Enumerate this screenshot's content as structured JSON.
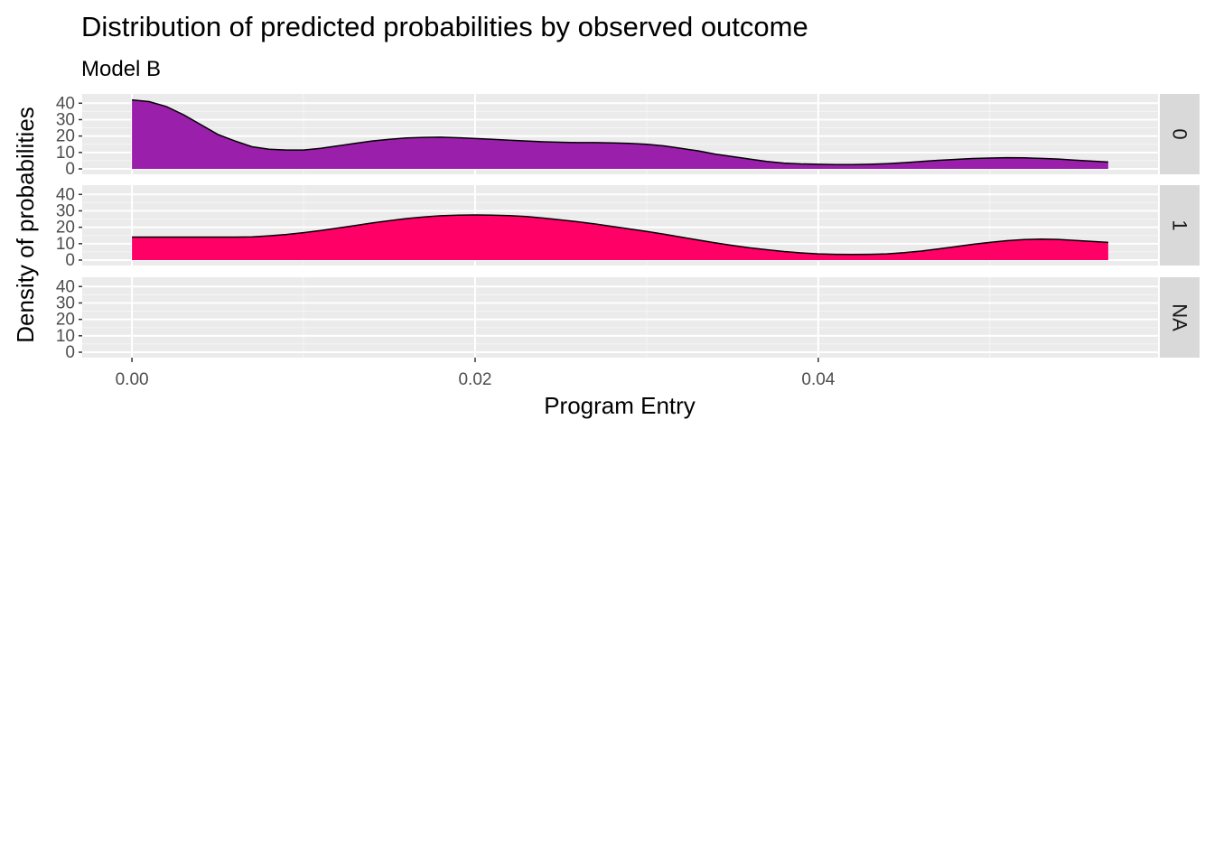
{
  "chart_data": {
    "type": "area",
    "title": "Distribution of predicted probabilities by observed outcome",
    "subtitle": "Model B",
    "xlabel": "Program Entry",
    "ylabel": "Density of probabilities",
    "xlim": [
      -0.0029,
      0.0598
    ],
    "ylim": [
      0,
      44
    ],
    "x_ticks": [
      0.0,
      0.02,
      0.04
    ],
    "x_tick_labels": [
      "0.00",
      "0.02",
      "0.04"
    ],
    "y_ticks": [
      0,
      10,
      20,
      30,
      40
    ],
    "y_tick_labels": [
      "0",
      "10",
      "20",
      "30",
      "40"
    ],
    "grid": true,
    "facet_strip_position": "right",
    "panels": [
      {
        "label": "0",
        "color": "#9A1FAA",
        "x": [
          0.0,
          0.001,
          0.002,
          0.003,
          0.004,
          0.005,
          0.006,
          0.007,
          0.008,
          0.009,
          0.01,
          0.011,
          0.012,
          0.013,
          0.014,
          0.015,
          0.016,
          0.017,
          0.018,
          0.019,
          0.02,
          0.021,
          0.022,
          0.023,
          0.024,
          0.025,
          0.026,
          0.027,
          0.028,
          0.029,
          0.03,
          0.031,
          0.032,
          0.033,
          0.034,
          0.035,
          0.036,
          0.037,
          0.038,
          0.039,
          0.04,
          0.041,
          0.042,
          0.043,
          0.044,
          0.045,
          0.046,
          0.047,
          0.048,
          0.049,
          0.05,
          0.051,
          0.052,
          0.053,
          0.054,
          0.055,
          0.0569
        ],
        "y": [
          42,
          41,
          38,
          33,
          27,
          21,
          17,
          13.5,
          12,
          11.5,
          11.5,
          12.5,
          14,
          15.5,
          17,
          18,
          18.8,
          19.2,
          19.3,
          19,
          18.5,
          18,
          17.5,
          17,
          16.5,
          16.2,
          16,
          16,
          15.8,
          15.5,
          15,
          14,
          12.5,
          11,
          9,
          7.5,
          6,
          4.5,
          3.5,
          3,
          2.8,
          2.6,
          2.6,
          2.8,
          3.2,
          3.8,
          4.5,
          5.2,
          5.8,
          6.3,
          6.6,
          6.8,
          6.7,
          6.4,
          6,
          5.3,
          4.2
        ]
      },
      {
        "label": "1",
        "color": "#FF0066",
        "x": [
          0.0,
          0.001,
          0.002,
          0.003,
          0.004,
          0.005,
          0.006,
          0.007,
          0.008,
          0.009,
          0.01,
          0.011,
          0.012,
          0.013,
          0.014,
          0.015,
          0.016,
          0.017,
          0.018,
          0.019,
          0.02,
          0.021,
          0.022,
          0.023,
          0.024,
          0.025,
          0.026,
          0.027,
          0.028,
          0.029,
          0.03,
          0.031,
          0.032,
          0.033,
          0.034,
          0.035,
          0.036,
          0.037,
          0.038,
          0.039,
          0.04,
          0.041,
          0.042,
          0.043,
          0.044,
          0.045,
          0.046,
          0.047,
          0.048,
          0.049,
          0.05,
          0.051,
          0.052,
          0.053,
          0.054,
          0.055,
          0.0569
        ],
        "y": [
          14,
          14,
          14,
          14,
          14,
          14,
          14,
          14.2,
          14.8,
          15.6,
          16.7,
          18,
          19.5,
          21,
          22.6,
          24,
          25.3,
          26.3,
          27,
          27.4,
          27.5,
          27.4,
          27.1,
          26.5,
          25.6,
          24.5,
          23.3,
          22,
          20.5,
          19,
          17.5,
          15.8,
          14,
          12.2,
          10.5,
          8.9,
          7.5,
          6.3,
          5.2,
          4.4,
          3.8,
          3.5,
          3.4,
          3.5,
          3.8,
          4.5,
          5.5,
          6.8,
          8.2,
          9.6,
          10.8,
          11.8,
          12.5,
          12.8,
          12.6,
          12,
          10.8
        ]
      },
      {
        "label": "NA",
        "color": "#999999",
        "x": [],
        "y": []
      }
    ]
  }
}
